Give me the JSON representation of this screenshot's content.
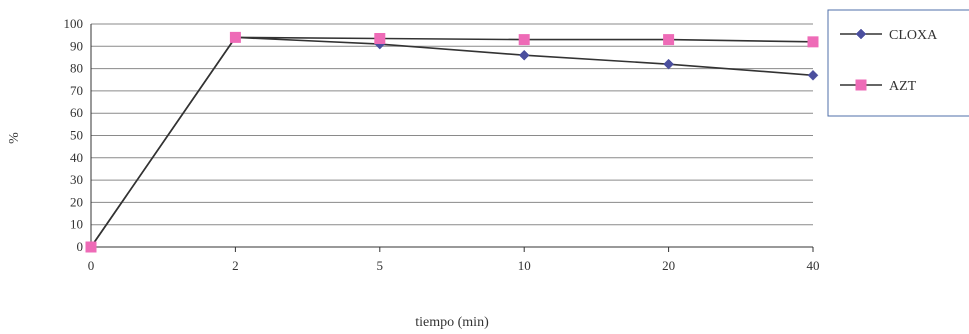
{
  "chart_data": {
    "type": "line",
    "title": "",
    "xlabel": "tiempo (min)",
    "ylabel": "%",
    "categories": [
      "0",
      "2",
      "5",
      "10",
      "20",
      "40"
    ],
    "ylim": [
      0,
      100
    ],
    "yticks": [
      "0",
      "10",
      "20",
      "30",
      "40",
      "50",
      "60",
      "70",
      "80",
      "90",
      "100"
    ],
    "grid": true,
    "legend_position": "right",
    "series": [
      {
        "name": "CLOXA",
        "values": [
          0,
          94,
          91,
          86,
          82,
          77
        ],
        "color": "#4b4f9e",
        "marker": "diamond"
      },
      {
        "name": "AZT",
        "values": [
          0,
          94,
          93.5,
          93,
          93,
          92
        ],
        "color": "#ee6bb7",
        "marker": "square"
      }
    ]
  },
  "colors": {
    "grid": "#8a8a8a",
    "line": "#333333",
    "legend_border": "#4f6fa8"
  }
}
